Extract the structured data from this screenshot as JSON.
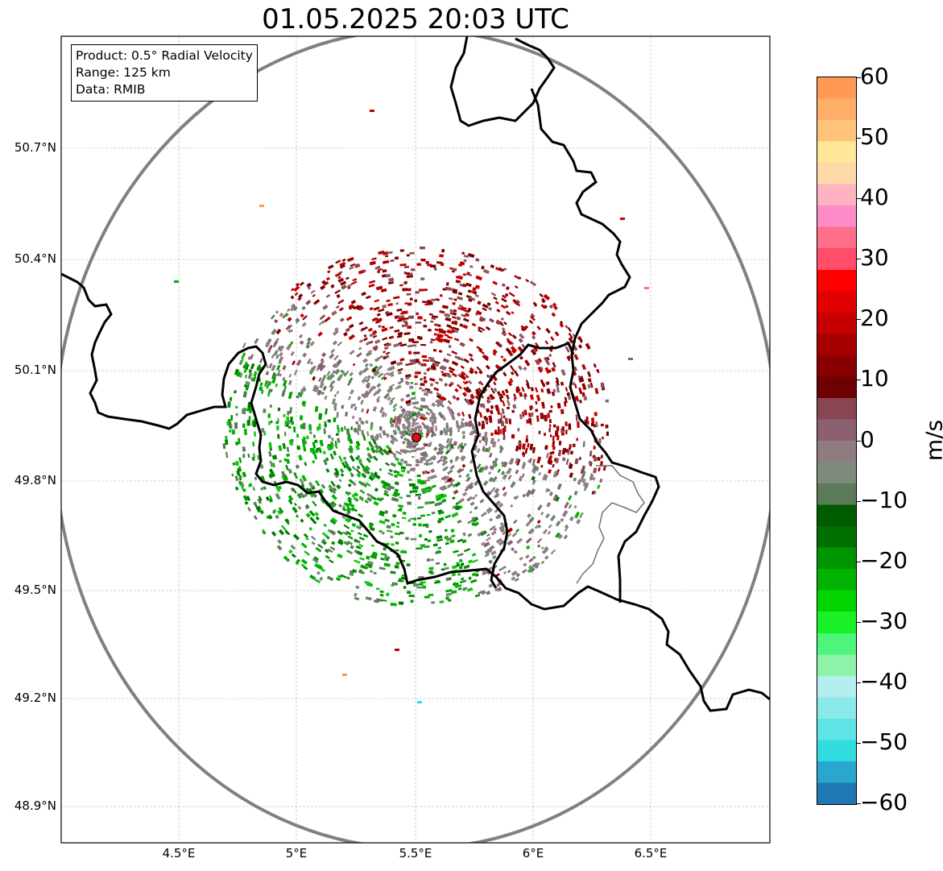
{
  "title": "01.05.2025 20:03 UTC",
  "info": {
    "product": "Product: 0.5° Radial Velocity",
    "range": "Range: 125 km",
    "data": "Data: RMIB"
  },
  "axes": {
    "lat_labels": [
      "50.7°N",
      "50.4°N",
      "50.1°N",
      "49.8°N",
      "49.5°N",
      "49.2°N",
      "48.9°N"
    ],
    "lon_labels": [
      "4.5°E",
      "5°E",
      "5.5°E",
      "6°E",
      "6.5°E"
    ]
  },
  "colorbar": {
    "unit": "m/s",
    "ticks": [
      "60",
      "50",
      "40",
      "30",
      "20",
      "10",
      "0",
      "−10",
      "−20",
      "−30",
      "−40",
      "−50",
      "−60"
    ],
    "min": -60,
    "max": 60,
    "colors": [
      "#1f78b4",
      "#2aa6cf",
      "#31dce0",
      "#5ee3e6",
      "#8ce9ea",
      "#b5eeee",
      "#8ef2a8",
      "#4df57a",
      "#18f028",
      "#02d400",
      "#00b300",
      "#009400",
      "#007000",
      "#005c00",
      "#5a7a5a",
      "#7e8a7e",
      "#8f7b80",
      "#8b6070",
      "#884654",
      "#6d0000",
      "#8a0000",
      "#a60000",
      "#c40000",
      "#e00000",
      "#ff0000",
      "#ff4d6a",
      "#ff6f8a",
      "#ff8ac8",
      "#ffb3c0",
      "#ffd9a8",
      "#ffe89a",
      "#ffc47a",
      "#ffae68",
      "#ff9a55"
    ]
  },
  "radar_site": {
    "lon": 5.5056,
    "lat": 49.9143
  },
  "colors": {
    "range_ring": "#808080",
    "border": "#000000",
    "grid": "#b0b0b0",
    "site_marker": "#e01010"
  }
}
